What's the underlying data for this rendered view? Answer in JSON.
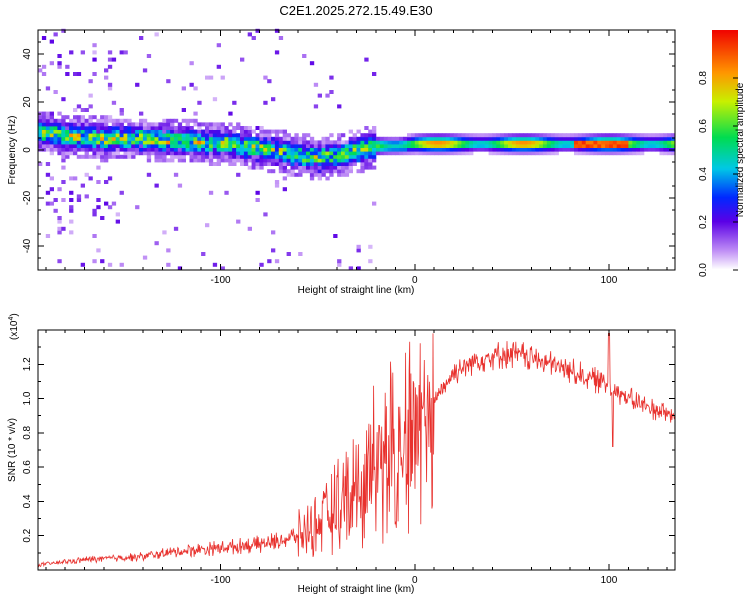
{
  "title": "C2E1.2025.272.15.49.E30",
  "chart_data": [
    {
      "type": "heatmap",
      "panel": "spectrogram",
      "xlabel": "Height of straight line (km)",
      "ylabel": "Frequency (Hz)",
      "xlim": [
        -194,
        134
      ],
      "ylim": [
        -50,
        50
      ],
      "xticks": [
        -100,
        0,
        100
      ],
      "yticks": [
        -40,
        -20,
        0,
        20,
        40
      ],
      "xtick_labels": [
        "-100",
        "0",
        "100"
      ],
      "ytick_labels": [
        "-40",
        "-20",
        "0",
        "20",
        "40"
      ],
      "ridge": {
        "x": [
          -194,
          -180,
          -160,
          -140,
          -120,
          -100,
          -80,
          -60,
          -50,
          -40,
          -30,
          -25,
          -20,
          -10,
          0,
          20,
          60,
          100,
          134
        ],
        "center_freq": [
          7,
          5,
          4,
          4,
          3,
          2,
          0,
          -3,
          -4,
          -3,
          -1,
          0,
          1,
          1,
          2,
          2,
          2,
          2,
          2
        ]
      },
      "colorbar": {
        "label": "Normalized spectral amplitude",
        "range": [
          0,
          1
        ],
        "ticks": [
          0.0,
          0.2,
          0.4,
          0.6,
          0.8
        ],
        "tick_labels": [
          "0.0",
          "0.2",
          "0.4",
          "0.6",
          "0.8"
        ]
      }
    },
    {
      "type": "line",
      "panel": "snr",
      "xlabel": "Height of straight line (km)",
      "ylabel": "SNR (10 * v/v)",
      "multiplier_base": "(x10",
      "multiplier_exp": "4",
      "multiplier_close": ")",
      "xlim": [
        -194,
        134
      ],
      "ylim": [
        0,
        1.4
      ],
      "xticks": [
        -100,
        0,
        100
      ],
      "xtick_labels": [
        "-100",
        "0",
        "100"
      ],
      "yticks": [
        0.2,
        0.4,
        0.6,
        0.8,
        1.0,
        1.2
      ],
      "ytick_labels": [
        "0.2",
        "0.4",
        "0.6",
        "0.8",
        "1.0",
        "1.2"
      ],
      "color": "#e8312d",
      "envelope": {
        "x": [
          -194,
          -170,
          -140,
          -120,
          -100,
          -80,
          -70,
          -60,
          -50,
          -40,
          -30,
          -20,
          -15,
          -10,
          0,
          10,
          20,
          30,
          40,
          50,
          60,
          70,
          80,
          90,
          100,
          110,
          120,
          134
        ],
        "y": [
          0.03,
          0.06,
          0.08,
          0.11,
          0.13,
          0.15,
          0.17,
          0.2,
          0.27,
          0.37,
          0.45,
          0.6,
          0.7,
          0.75,
          0.8,
          1.0,
          1.15,
          1.22,
          1.25,
          1.26,
          1.24,
          1.2,
          1.16,
          1.12,
          1.08,
          1.0,
          0.95,
          0.9
        ]
      }
    }
  ]
}
